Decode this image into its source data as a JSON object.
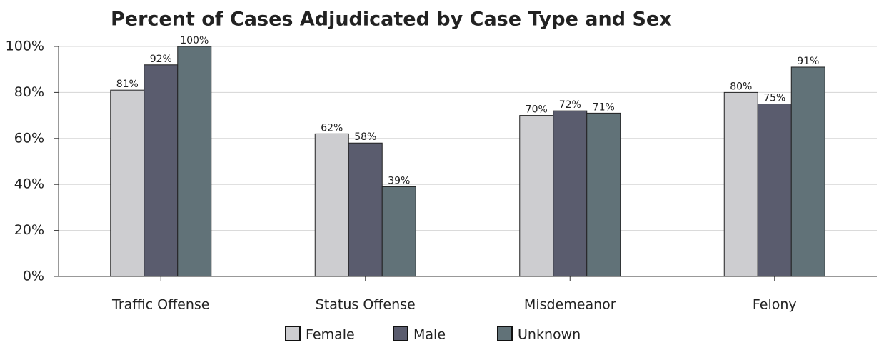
{
  "chart_data": {
    "type": "bar",
    "title": "Percent of Cases Adjudicated by Case Type and Sex",
    "categories": [
      "Traffic Offense",
      "Status Offense",
      "Misdemeanor",
      "Felony"
    ],
    "series": [
      {
        "name": "Female",
        "color": "#cdcdd0",
        "values": [
          81,
          62,
          70,
          80
        ],
        "value_labels": [
          "81%",
          "62%",
          "70%",
          "80%"
        ]
      },
      {
        "name": "Male",
        "color": "#5a5c6e",
        "values": [
          92,
          58,
          72,
          75
        ],
        "value_labels": [
          "92%",
          "58%",
          "72%",
          "75%"
        ]
      },
      {
        "name": "Unknown",
        "color": "#617278",
        "values": [
          100,
          39,
          71,
          91
        ],
        "value_labels": [
          "100%",
          "39%",
          "71%",
          "91%"
        ]
      }
    ],
    "ylim": [
      0,
      100
    ],
    "yticks": [
      {
        "value": 0,
        "label": "0%"
      },
      {
        "value": 20,
        "label": "20%"
      },
      {
        "value": 40,
        "label": "40%"
      },
      {
        "value": 60,
        "label": "60%"
      },
      {
        "value": 80,
        "label": "80%"
      },
      {
        "value": 100,
        "label": "100%"
      }
    ],
    "grid": true
  }
}
